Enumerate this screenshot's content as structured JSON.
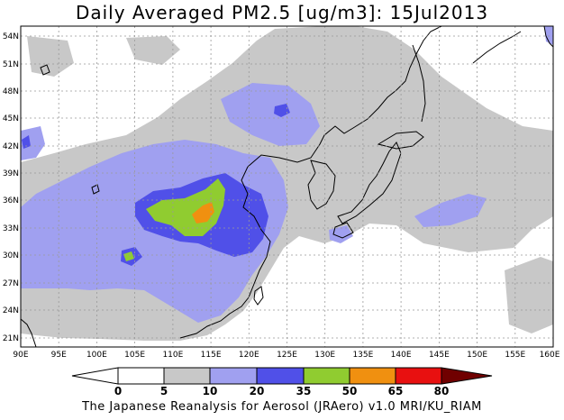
{
  "title": "Daily Averaged PM2.5 [ug/m3]: 15Jul2013",
  "footer": "The Japanese Reanalysis for Aerosol (JRAero) v1.0 MRI/KU_RIAM",
  "map": {
    "lon_ticks": [
      "90E",
      "95E",
      "100E",
      "105E",
      "110E",
      "115E",
      "120E",
      "125E",
      "130E",
      "135E",
      "140E",
      "145E",
      "150E",
      "155E",
      "160E"
    ],
    "lat_ticks": [
      "54N",
      "51N",
      "48N",
      "45N",
      "42N",
      "39N",
      "36N",
      "33N",
      "30N",
      "27N",
      "24N",
      "21N"
    ]
  },
  "colorbar": {
    "labels": [
      "0",
      "5",
      "10",
      "20",
      "35",
      "50",
      "65",
      "80"
    ],
    "colors": [
      "#ffffff",
      "#c8c8c8",
      "#a0a0f0",
      "#5050e8",
      "#90cc30",
      "#f09010",
      "#e81010",
      "#700000"
    ],
    "under_color": "#ffffff",
    "over_color": "#700000"
  }
}
